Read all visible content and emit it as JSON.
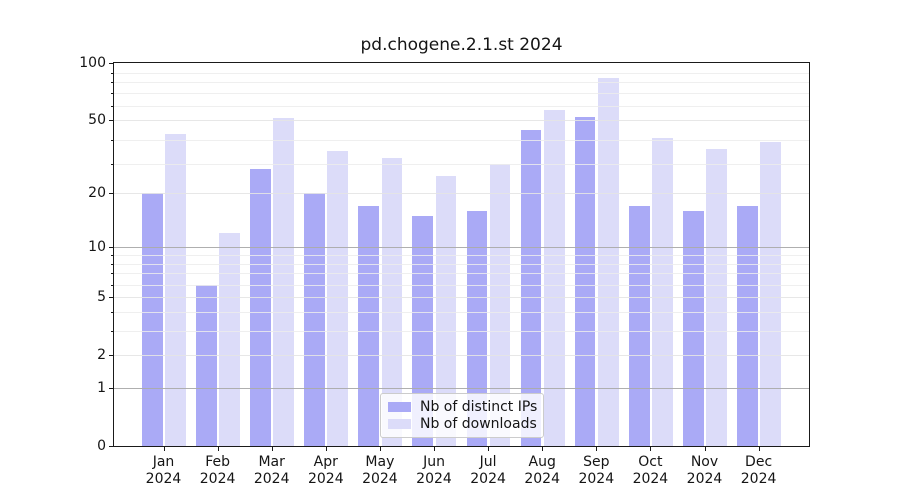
{
  "chart_data": {
    "type": "bar",
    "title": "pd.chogene.2.1.st 2024",
    "categories": [
      "Jan",
      "Feb",
      "Mar",
      "Apr",
      "May",
      "Jun",
      "Jul",
      "Aug",
      "Sep",
      "Oct",
      "Nov",
      "Dec"
    ],
    "x_tick_second_line": "2024",
    "series": [
      {
        "name": "Nb of distinct IPs",
        "color": "#aaaaf6",
        "values": [
          20,
          6,
          27,
          20,
          17,
          15,
          16,
          44,
          52,
          17,
          16,
          17
        ]
      },
      {
        "name": "Nb of downloads",
        "color": "#dcdcf9",
        "values": [
          42,
          12,
          51,
          34,
          31,
          25,
          29,
          56,
          83,
          40,
          35,
          38
        ]
      }
    ],
    "y_scale": "log1p",
    "ylim": [
      0,
      100
    ],
    "y_major_ticks": [
      0,
      1,
      2,
      5,
      10,
      20,
      50,
      100
    ],
    "y_minor_ticks": [
      3,
      4,
      6,
      7,
      8,
      9,
      29,
      39,
      59,
      69,
      79,
      89
    ],
    "y_dark_gridline_values": [
      1,
      10
    ],
    "grid": "on",
    "legend_position": "lower center"
  }
}
